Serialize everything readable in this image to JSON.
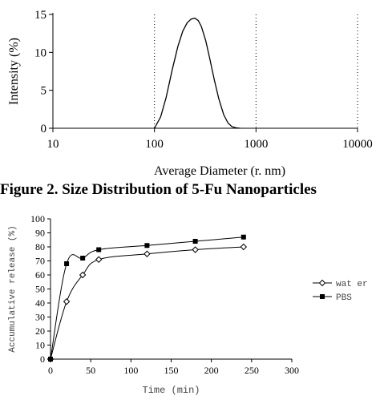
{
  "caption": "Figure 2. Size Distribution of 5-Fu Nanoparticles",
  "chart_data": [
    {
      "type": "line",
      "xscale": "log",
      "xlim": [
        10,
        10000
      ],
      "ylim": [
        0,
        15
      ],
      "xticks": [
        10,
        100,
        1000,
        10000
      ],
      "xtick_labels": [
        "10",
        "100",
        "1000",
        "10000"
      ],
      "yticks": [
        0,
        5,
        10,
        15
      ],
      "ytick_labels": [
        "0",
        "5",
        "10",
        "15"
      ],
      "grid": "vertical dotted at decades",
      "xlabel": "Average Diameter (r. nm)",
      "ylabel": "Intensity (%)",
      "series": [
        {
          "color": "#000000",
          "x": [
            100,
            115,
            130,
            150,
            170,
            190,
            210,
            230,
            250,
            270,
            290,
            320,
            350,
            390,
            430,
            480,
            530,
            580,
            640,
            700
          ],
          "y": [
            0,
            1.5,
            4.0,
            7.8,
            10.8,
            12.8,
            13.9,
            14.4,
            14.5,
            14.2,
            13.4,
            11.5,
            9.2,
            6.3,
            3.9,
            1.8,
            0.7,
            0.2,
            0.05,
            0
          ]
        }
      ]
    },
    {
      "type": "line",
      "xlim": [
        0,
        300
      ],
      "ylim": [
        0,
        100
      ],
      "xticks": [
        0,
        50,
        100,
        150,
        200,
        250,
        300
      ],
      "xtick_labels": [
        "0",
        "50",
        "100",
        "150",
        "200",
        "250",
        "300"
      ],
      "yticks": [
        0,
        10,
        20,
        30,
        40,
        50,
        60,
        70,
        80,
        90,
        100
      ],
      "ytick_labels": [
        "0",
        "10",
        "20",
        "30",
        "40",
        "50",
        "60",
        "70",
        "80",
        "90",
        "100"
      ],
      "grid": false,
      "legend": "right",
      "xlabel": "Time (min)",
      "ylabel": "Accumulative release (%)",
      "series": [
        {
          "name": "wat er",
          "marker": "open-diamond",
          "color": "#000000",
          "x": [
            0,
            20,
            40,
            60,
            120,
            180,
            240
          ],
          "y": [
            0,
            41,
            60,
            71,
            75,
            78,
            80
          ]
        },
        {
          "name": "PBS",
          "marker": "filled-square",
          "color": "#000000",
          "x": [
            0,
            20,
            40,
            60,
            120,
            180,
            240
          ],
          "y": [
            0,
            68,
            72,
            78,
            81,
            84,
            87
          ]
        }
      ]
    }
  ]
}
